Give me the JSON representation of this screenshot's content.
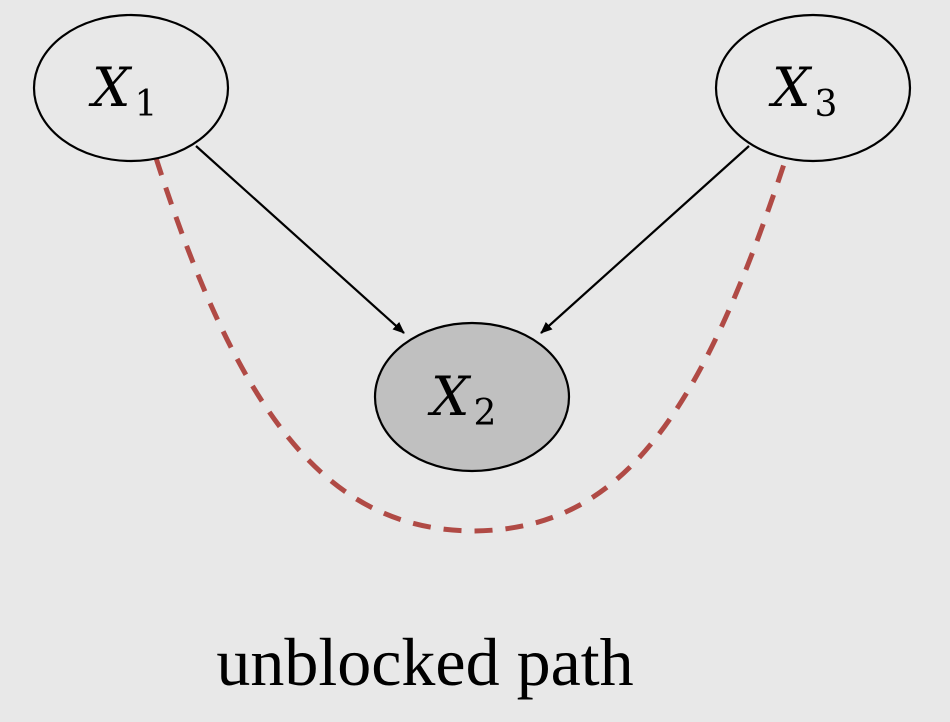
{
  "diagram": {
    "background": "#e8e8e8",
    "nodes": [
      {
        "id": "x1",
        "base": "X",
        "sub": "1",
        "observed": false,
        "fill": "#e8e8e8"
      },
      {
        "id": "x2",
        "base": "X",
        "sub": "2",
        "observed": true,
        "fill": "#c0c0c0"
      },
      {
        "id": "x3",
        "base": "X",
        "sub": "3",
        "observed": false,
        "fill": "#e8e8e8"
      }
    ],
    "edges": [
      {
        "from": "x1",
        "to": "x2"
      },
      {
        "from": "x3",
        "to": "x2"
      }
    ],
    "path_color": "#b04a45",
    "caption": "unblocked path"
  }
}
